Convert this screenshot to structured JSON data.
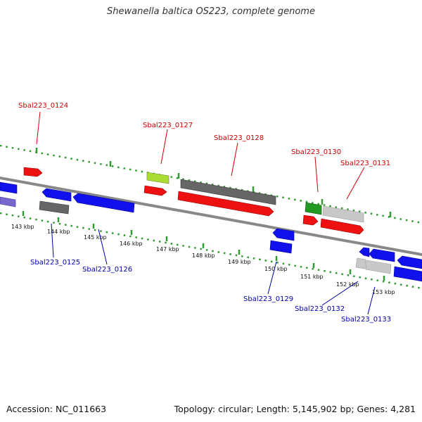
{
  "title": "Shewanella baltica OS223, complete genome",
  "footer": {
    "accession": "Accession: NC_011663",
    "summary": "Topology: circular; Length: 5,145,902 bp; Genes: 4,281"
  },
  "colors": {
    "backbone": "#888888",
    "ruler_dots": "#339933",
    "label_red": "#cc0000",
    "label_blue": "#0000aa"
  },
  "ruler_labels": [
    "143 kbp",
    "144 kbp",
    "145 kbp",
    "146 kbp",
    "147 kbp",
    "148 kbp",
    "149 kbp",
    "150 kbp",
    "151 kbp",
    "152 kbp",
    "153 kbp"
  ],
  "gene_labels": [
    "Sbal223_0124",
    "Sbal223_0125",
    "Sbal223_0126",
    "Sbal223_0127",
    "Sbal223_0128",
    "Sbal223_0129",
    "Sbal223_0130",
    "Sbal223_0131",
    "Sbal223_0132",
    "Sbal223_0133"
  ]
}
